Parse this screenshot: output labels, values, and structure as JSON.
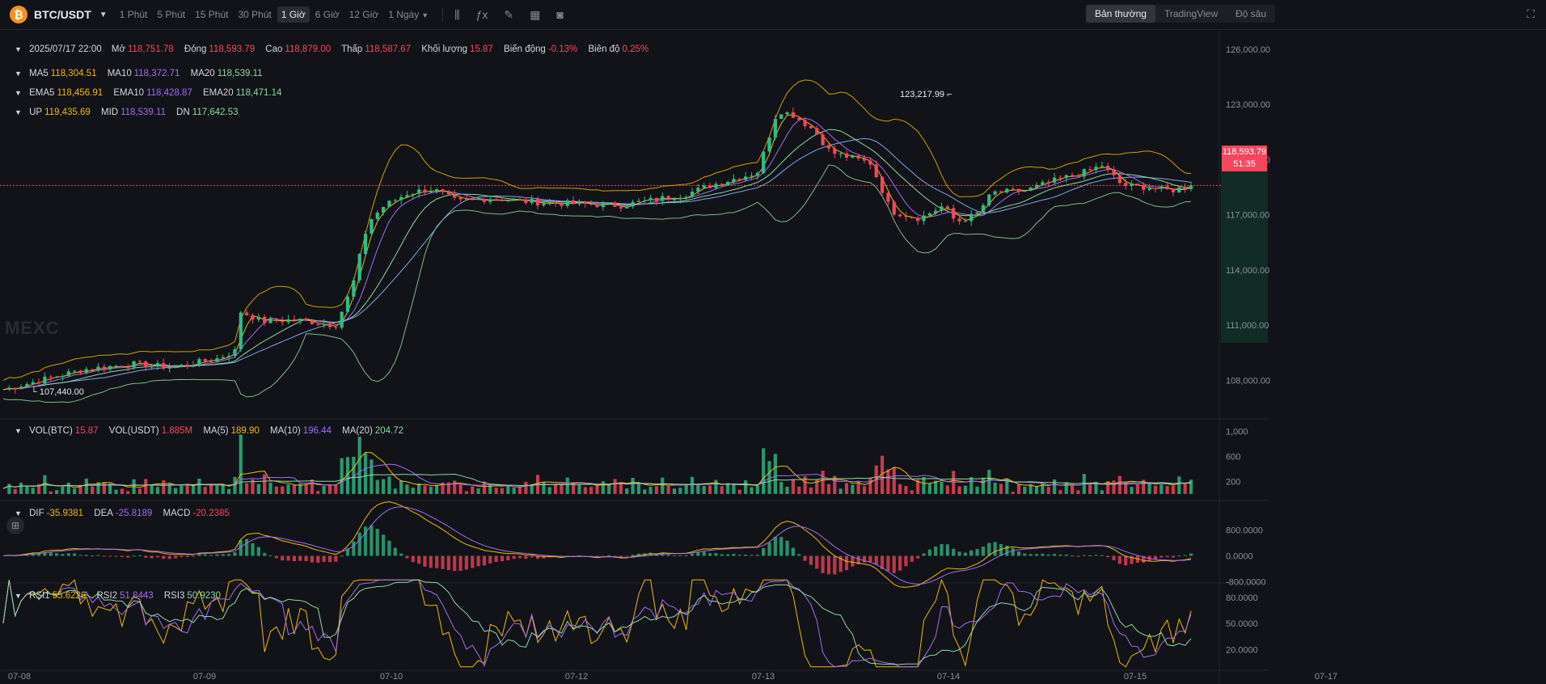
{
  "topbar": {
    "coin_icon": "bitcoin-icon",
    "pair": "BTC/USDT",
    "timeframes": [
      "1 Phút",
      "5 Phút",
      "15 Phút",
      "30 Phút",
      "1 Giờ",
      "6 Giờ",
      "12 Giờ",
      "1 Ngày"
    ],
    "active_timeframe": "1 Giờ",
    "tools": [
      "candle-style-icon",
      "indicator-icon",
      "draw-icon",
      "layout-icon",
      "camera-icon"
    ],
    "views": [
      "Bản thường",
      "TradingView",
      "Độ sâu"
    ],
    "active_view": "Bản thường",
    "fullscreen_icon": "fullscreen-icon"
  },
  "ohlc": {
    "date": "2025/07/17 22:00",
    "open_label": "Mở",
    "open": "118,751.78",
    "close_label": "Đóng",
    "close": "118,593.79",
    "high_label": "Cao",
    "high": "118,879.00",
    "low_label": "Thấp",
    "low": "118,587.67",
    "vol_label": "Khối lượng",
    "vol": "15.87",
    "change_label": "Biến động",
    "change": "-0.13%",
    "amp_label": "Biên độ",
    "amp": "0.25%"
  },
  "ma": {
    "l5": "MA5",
    "v5": "118,304.51",
    "l10": "MA10",
    "v10": "118,372.71",
    "l20": "MA20",
    "v20": "118,539.11"
  },
  "ema": {
    "l5": "EMA5",
    "v5": "118,456.91",
    "l10": "EMA10",
    "v10": "118,428.87",
    "l20": "EMA20",
    "v20": "118,471.14"
  },
  "boll": {
    "lup": "UP",
    "vup": "119,435.69",
    "lmid": "MID",
    "vmid": "118,539.11",
    "ldn": "DN",
    "vdn": "117,642.53"
  },
  "vol": {
    "l1": "VOL(BTC)",
    "v1": "15.87",
    "l2": "VOL(USDT)",
    "v2": "1.885M",
    "l3": "MA(5)",
    "v3": "189.90",
    "l4": "MA(10)",
    "v4": "196.44",
    "l5": "MA(20)",
    "v5": "204.72"
  },
  "macd": {
    "l1": "DIF",
    "v1": "-35.9381",
    "l2": "DEA",
    "v2": "-25.8189",
    "l3": "MACD",
    "v3": "-20.2385"
  },
  "rsi": {
    "l1": "RSI1",
    "v1": "55.6226",
    "l2": "RSI2",
    "v2": "51.8443",
    "l3": "RSI3",
    "v3": "50.9230"
  },
  "price_axis": [
    "126,000.00",
    "123,000.00",
    "120,000.00",
    "117,000.00",
    "114,000.00",
    "111,000.00",
    "108,000.00"
  ],
  "vol_axis": [
    "1,000",
    "600",
    "200"
  ],
  "macd_axis": [
    "800.0000",
    "0.0000",
    "-800.0000"
  ],
  "rsi_axis": [
    "80.0000",
    "50.0000",
    "20.0000"
  ],
  "date_axis": [
    "07-08",
    "07-09",
    "07-10",
    "07-12",
    "07-13",
    "07-14",
    "07-15",
    "07-17"
  ],
  "last_price": {
    "price": "118,593.79",
    "countdown": "51:35"
  },
  "high_mark": "123,217.99",
  "low_mark": "107,440.00",
  "watermark": "MEXC",
  "colors": {
    "up": "#2ebd85",
    "down": "#f6465d",
    "ma5": "#f0b90b",
    "ma10": "#a36bf5",
    "ma20": "#8fd8a0",
    "bg": "#121318"
  },
  "chart_data": {
    "type": "candlestick",
    "pair": "BTC/USDT",
    "interval": "1 Giờ",
    "ylim": [
      106000,
      127000
    ],
    "anchors": [
      [
        0,
        107500
      ],
      [
        45,
        108000
      ],
      [
        100,
        108600
      ],
      [
        160,
        108900
      ],
      [
        210,
        108700
      ],
      [
        265,
        109200
      ],
      [
        286,
        109600
      ],
      [
        290,
        111800
      ],
      [
        320,
        111200
      ],
      [
        360,
        111300
      ],
      [
        410,
        111000
      ],
      [
        430,
        113000
      ],
      [
        450,
        116600
      ],
      [
        470,
        117500
      ],
      [
        500,
        118200
      ],
      [
        530,
        118400
      ],
      [
        560,
        117700
      ],
      [
        600,
        117900
      ],
      [
        650,
        117700
      ],
      [
        700,
        117600
      ],
      [
        760,
        117500
      ],
      [
        800,
        117800
      ],
      [
        840,
        118100
      ],
      [
        880,
        118700
      ],
      [
        930,
        119300
      ],
      [
        955,
        122700
      ],
      [
        975,
        122400
      ],
      [
        1000,
        121600
      ],
      [
        1020,
        120400
      ],
      [
        1070,
        119800
      ],
      [
        1095,
        117200
      ],
      [
        1130,
        116800
      ],
      [
        1160,
        117500
      ],
      [
        1175,
        116600
      ],
      [
        1200,
        117000
      ],
      [
        1220,
        118200
      ],
      [
        1260,
        118300
      ],
      [
        1300,
        118900
      ],
      [
        1340,
        119400
      ],
      [
        1355,
        119700
      ],
      [
        1380,
        118600
      ],
      [
        1410,
        118500
      ],
      [
        1440,
        118300
      ],
      [
        1465,
        118600
      ]
    ],
    "high": 123217.99,
    "low": 107440.0,
    "last": 118593.79
  }
}
